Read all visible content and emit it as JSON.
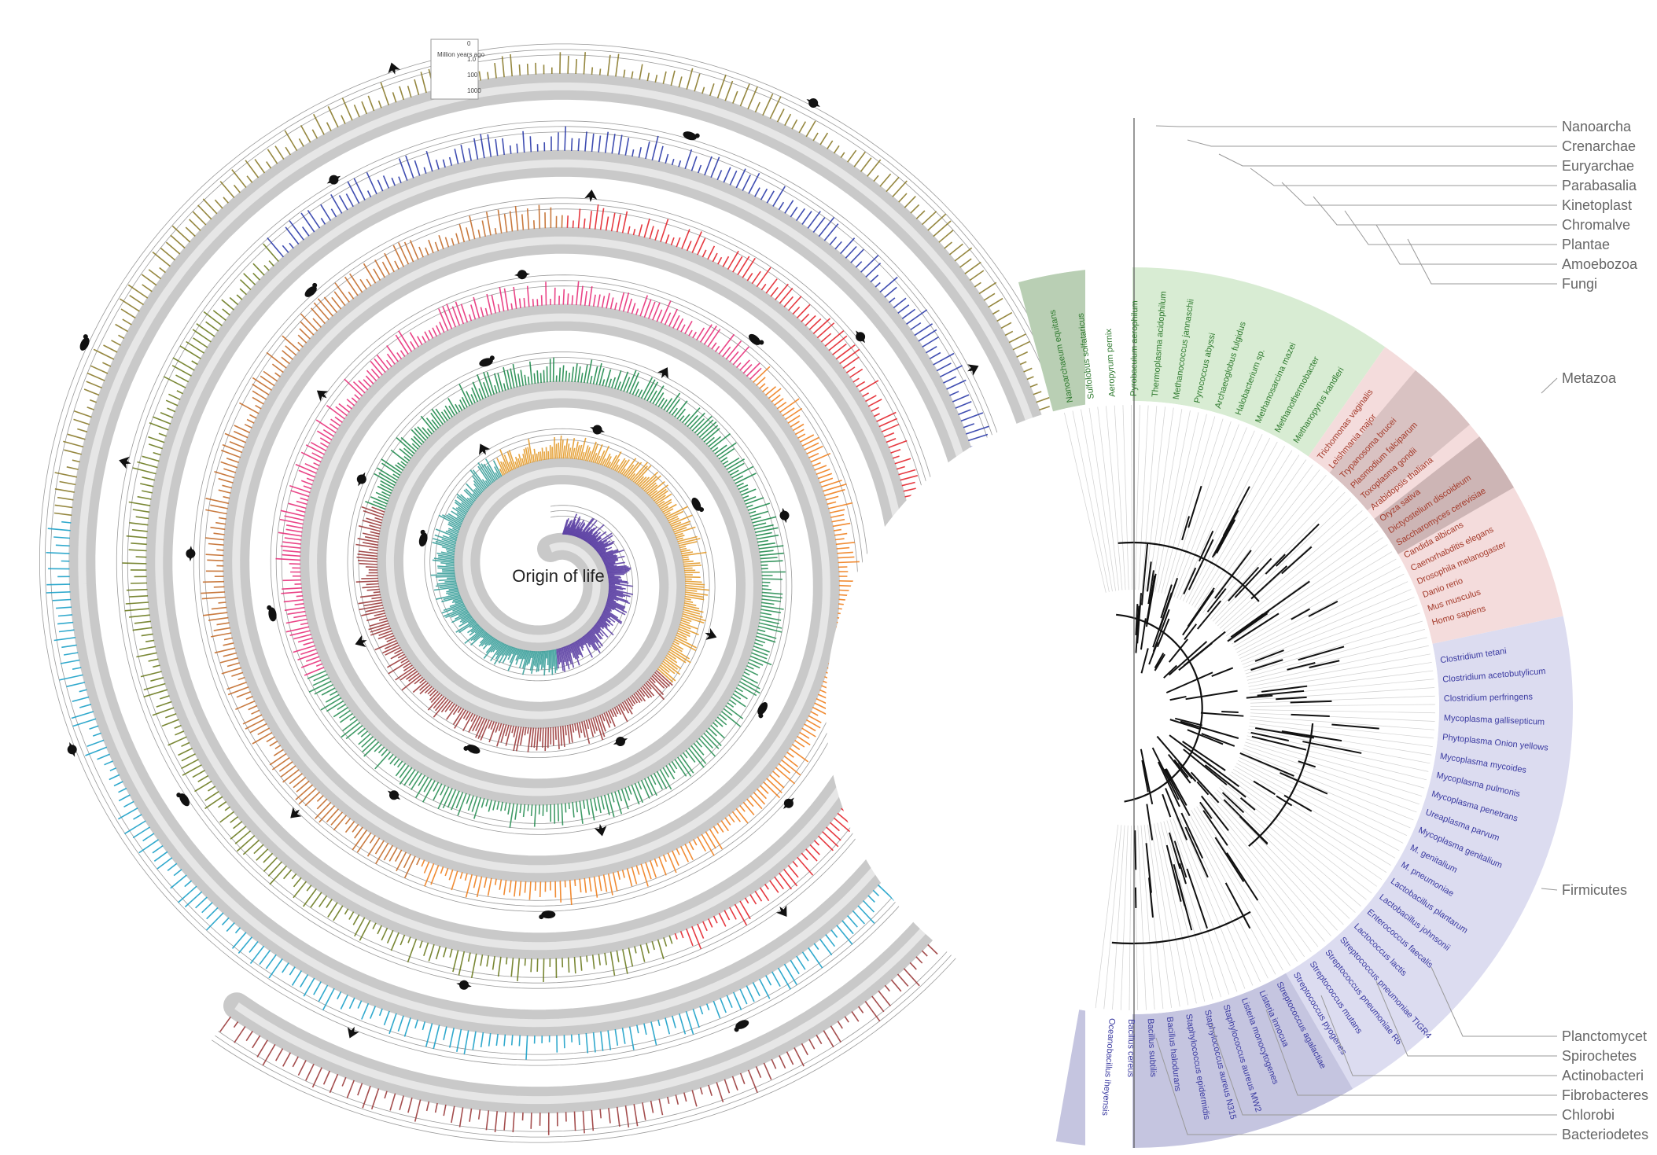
{
  "spiral": {
    "center_label": "Origin of life",
    "scale_axis": {
      "title": "Million years ago",
      "ticks": [
        "0",
        "1.0",
        "100",
        "1000"
      ]
    },
    "segment_colors": [
      "#5b3fa3",
      "#3a9e9a",
      "#e39a2a",
      "#9a3a3a",
      "#1f8a4c",
      "#2a8f55",
      "#e8307a",
      "#f07f1e",
      "#c36b2a",
      "#e3242b",
      "#6a7a1e",
      "#2a3aa8",
      "#1aa0c8",
      "#8a7a2a",
      "#9a3a3a"
    ],
    "icons": [
      "bird-icon",
      "lizard-icon",
      "fish-icon",
      "insect-icon",
      "crab-icon",
      "plant-icon",
      "mammal-icon",
      "snake-icon",
      "jellyfish-icon",
      "spider-icon"
    ]
  },
  "tree": {
    "callouts_top": [
      "Nanoarcha",
      "Crenarchae",
      "Euryarchae",
      "Parabasalia",
      "Kinetoplast",
      "Chromalve",
      "Plantae",
      "Amoebozoa",
      "Fungi"
    ],
    "callout_mid_1": "Metazoa",
    "callout_mid_2": "Firmicutes",
    "callouts_bottom": [
      "Planctomycet",
      "Spirochetes",
      "Actinobacteri",
      "Fibrobacteres",
      "Chlorobi",
      "Bacteriodetes"
    ],
    "species_green": [
      "Nanoarchaeum equitans",
      "Sulfolobus solfataricus",
      "Aeropyrum pernix",
      "Pyrobaculum aerophilum",
      "Thermoplasma acidophilum",
      "Methanococcus jannaschii",
      "Pyrococcus abyssi",
      "Archaeoglobus fulgidus",
      "Halobacterium sp.",
      "Methanosarcina mazei",
      "Methanothermobacter",
      "Methanopyrus kandleri"
    ],
    "species_red": [
      "Trichomonas vaginalis",
      "Leishmania major",
      "Trypanosoma brucei",
      "Plasmodium falciparum",
      "Toxoplasma gondii",
      "Arabidopsis thaliana",
      "Oryza sativa",
      "Dictyostelium discoideum",
      "Saccharomyces cerevisiae",
      "Candida albicans",
      "Caenorhabditis elegans",
      "Drosophila melanogaster",
      "Danio rerio",
      "Mus musculus",
      "Homo sapiens"
    ],
    "species_blue": [
      "Clostridium tetani",
      "Clostridium acetobutylicum",
      "Clostridium perfringens",
      "Mycoplasma gallisepticum",
      "Phytoplasma Onion yellows",
      "Mycoplasma mycoides",
      "Mycoplasma pulmonis",
      "Mycoplasma penetrans",
      "Ureaplasma parvum",
      "Mycoplasma genitalium",
      "M. genitalium",
      "M. pneumoniae",
      "Lactobacillus plantarum",
      "Lactobacillus johnsonii",
      "Enterococcus faecalis",
      "Lactococcus lactis",
      "Streptococcus pneumoniae TIGR4",
      "Streptococcus pneumoniae R6",
      "Streptococcus mutans",
      "Streptococcus pyogenes",
      "Streptococcus agalactiae",
      "Listeria innocua",
      "Listeria monocytogenes",
      "Staphylococcus aureus MW2",
      "Staphylococcus aureus N315",
      "Staphylococcus epidermidis",
      "Bacillus halodurans",
      "Bacillus subtilis",
      "Bacillus cereus",
      "Oceanobacillus iheyensis"
    ]
  }
}
